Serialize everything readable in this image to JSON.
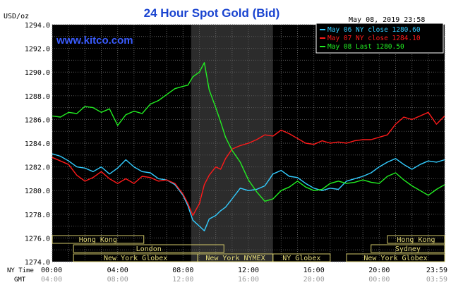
{
  "header": {
    "title": "24 Hour Spot Gold (Bid)",
    "unit": "USD/oz",
    "timestamp": "May 08, 2019 23:58",
    "watermark": "www.kitco.com"
  },
  "legend": [
    {
      "label": "May 06 NY close 1280.60",
      "color": "#33ccff"
    },
    {
      "label": "May 07 NY close 1284.10",
      "color": "#ff1a1a"
    },
    {
      "label": "May 08 Last 1280.50",
      "color": "#22ee22"
    }
  ],
  "axis_row_labels": {
    "ny": "NY Time",
    "gmt": "GMT"
  },
  "sessions": [
    {
      "name": "Hong Kong",
      "row": 0,
      "start": 0,
      "end": 5.6
    },
    {
      "name": "Hong Kong",
      "row": 0,
      "start": 20.5,
      "end": 24
    },
    {
      "name": "London",
      "row": 1,
      "start": 1.3,
      "end": 10.5
    },
    {
      "name": "Sydney",
      "row": 1,
      "start": 19.5,
      "end": 24
    },
    {
      "name": "New York Globex",
      "row": 2,
      "start": 1.3,
      "end": 8.9
    },
    {
      "name": "New York NYMEX",
      "row": 2,
      "start": 8.9,
      "end": 13.5
    },
    {
      "name": "NY Globex",
      "row": 2,
      "start": 13.5,
      "end": 17
    },
    {
      "name": "New York Globex",
      "row": 2,
      "start": 18,
      "end": 24
    }
  ],
  "chart_data": {
    "type": "line",
    "title": "24 Hour Spot Gold (Bid)",
    "ylabel": "USD/oz",
    "ylim": [
      1274.0,
      1294.0
    ],
    "yticks": [
      "1274.0",
      "1276.0",
      "1278.0",
      "1280.0",
      "1282.0",
      "1284.0",
      "1286.0",
      "1288.0",
      "1290.0",
      "1292.0",
      "1294.0"
    ],
    "xlim": [
      0,
      24
    ],
    "xticks_ny": [
      "00:00",
      "04:00",
      "08:00",
      "12:00",
      "16:00",
      "20:00",
      "23:59"
    ],
    "xticks_gmt": [
      "04:00",
      "08:00",
      "12:00",
      "16:00",
      "20:00",
      "00:00",
      "03:59"
    ],
    "highlight_range": [
      8.5,
      13.5
    ],
    "grid": true,
    "series": [
      {
        "name": "May 06",
        "color": "#33ccff",
        "x": [
          0,
          0.5,
          1,
          1.5,
          2,
          2.5,
          3,
          3.5,
          4,
          4.5,
          5,
          5.5,
          6,
          6.5,
          7,
          7.5,
          8,
          8.3,
          8.6,
          9,
          9.3,
          9.6,
          10,
          10.3,
          10.6,
          11,
          11.5,
          12,
          12.5,
          13,
          13.5,
          14,
          14.5,
          15,
          15.5,
          16,
          16.5,
          17,
          17.5,
          18,
          18.5,
          19,
          19.5,
          20,
          20.5,
          21,
          21.5,
          22,
          22.5,
          23,
          23.5,
          24
        ],
        "y": [
          1283.1,
          1282.9,
          1282.5,
          1282.0,
          1281.9,
          1281.6,
          1282.0,
          1281.4,
          1281.9,
          1282.6,
          1282.0,
          1281.6,
          1281.5,
          1281.0,
          1280.9,
          1280.5,
          1279.6,
          1278.7,
          1277.5,
          1277.0,
          1276.6,
          1277.6,
          1277.9,
          1278.3,
          1278.6,
          1279.3,
          1280.2,
          1280.0,
          1280.1,
          1280.4,
          1281.4,
          1281.7,
          1281.2,
          1281.1,
          1280.6,
          1280.2,
          1280.0,
          1280.2,
          1280.1,
          1280.8,
          1281.0,
          1281.2,
          1281.5,
          1282.0,
          1282.4,
          1282.7,
          1282.2,
          1281.8,
          1282.2,
          1282.5,
          1282.4,
          1282.6
        ]
      },
      {
        "name": "May 07",
        "color": "#ff1a1a",
        "x": [
          0,
          0.5,
          1,
          1.5,
          2,
          2.5,
          3,
          3.5,
          4,
          4.5,
          5,
          5.5,
          6,
          6.5,
          7,
          7.5,
          8,
          8.3,
          8.6,
          9,
          9.3,
          9.6,
          10,
          10.3,
          10.6,
          11,
          11.5,
          12,
          12.5,
          13,
          13.5,
          14,
          14.5,
          15,
          15.5,
          16,
          16.5,
          17,
          17.5,
          18,
          18.5,
          19,
          19.5,
          20,
          20.5,
          21,
          21.5,
          22,
          22.5,
          23,
          23.5,
          24
        ],
        "y": [
          1282.8,
          1282.5,
          1282.2,
          1281.3,
          1280.8,
          1281.1,
          1281.6,
          1281.0,
          1280.6,
          1281.0,
          1280.6,
          1281.2,
          1281.1,
          1280.8,
          1280.9,
          1280.6,
          1279.7,
          1278.9,
          1277.9,
          1278.9,
          1280.5,
          1281.3,
          1282.0,
          1281.8,
          1282.7,
          1283.5,
          1283.8,
          1284.0,
          1284.3,
          1284.7,
          1284.6,
          1285.1,
          1284.8,
          1284.4,
          1284.0,
          1283.9,
          1284.2,
          1284.0,
          1284.1,
          1284.0,
          1284.2,
          1284.3,
          1284.3,
          1284.5,
          1284.7,
          1285.6,
          1286.2,
          1286.0,
          1286.3,
          1286.6,
          1285.6,
          1286.3
        ]
      },
      {
        "name": "May 08",
        "color": "#22ee22",
        "x": [
          0,
          0.5,
          1,
          1.5,
          2,
          2.5,
          3,
          3.5,
          4,
          4.5,
          5,
          5.5,
          6,
          6.5,
          7,
          7.5,
          8,
          8.3,
          8.6,
          9,
          9.3,
          9.6,
          10,
          10.3,
          10.6,
          11,
          11.5,
          12,
          12.5,
          13,
          13.5,
          14,
          14.5,
          15,
          15.5,
          16,
          16.5,
          17,
          17.5,
          18,
          18.5,
          19,
          19.5,
          20,
          20.5,
          21,
          21.5,
          22,
          22.5,
          23,
          23.5,
          24
        ],
        "y": [
          1286.3,
          1286.2,
          1286.6,
          1286.5,
          1287.1,
          1287.0,
          1286.6,
          1286.9,
          1285.5,
          1286.4,
          1286.7,
          1286.5,
          1287.3,
          1287.6,
          1288.1,
          1288.6,
          1288.8,
          1288.9,
          1289.6,
          1290.0,
          1290.8,
          1288.5,
          1287.0,
          1285.8,
          1284.5,
          1283.4,
          1282.4,
          1280.9,
          1279.9,
          1279.1,
          1279.3,
          1280.0,
          1280.3,
          1280.8,
          1280.3,
          1280.0,
          1280.1,
          1280.6,
          1280.8,
          1280.6,
          1280.7,
          1280.9,
          1280.7,
          1280.6,
          1281.2,
          1281.5,
          1280.9,
          1280.4,
          1280.0,
          1279.6,
          1280.1,
          1280.5
        ]
      }
    ]
  }
}
